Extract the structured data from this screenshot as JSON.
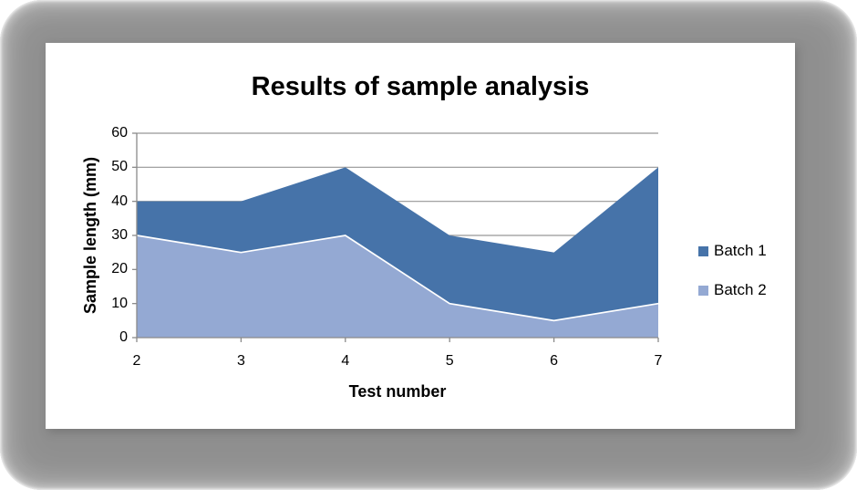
{
  "chart_data": {
    "type": "area",
    "title": "Results of sample analysis",
    "xlabel": "Test number",
    "ylabel": "Sample length (mm)",
    "x": [
      2,
      3,
      4,
      5,
      6,
      7
    ],
    "series": [
      {
        "name": "Batch 1",
        "values": [
          40,
          40,
          50,
          30,
          25,
          50
        ],
        "color": "#4673A9",
        "border": null
      },
      {
        "name": "Batch 2",
        "values": [
          30,
          25,
          30,
          10,
          5,
          10
        ],
        "color": "#94A9D3",
        "border": "#FFFFFF"
      }
    ],
    "ylim": [
      0,
      60
    ],
    "yticks": [
      0,
      10,
      20,
      30,
      40,
      50,
      60
    ],
    "grid": true,
    "legend_position": "right",
    "overlap_note": "overlapping areas: Batch 1 drawn behind Batch 2",
    "colors": {
      "gridline": "#969696",
      "axis": "#8A8A8A",
      "text": "#000000",
      "frame_gray": "#8F8F8F",
      "canvas_white": "#FFFFFF"
    }
  }
}
